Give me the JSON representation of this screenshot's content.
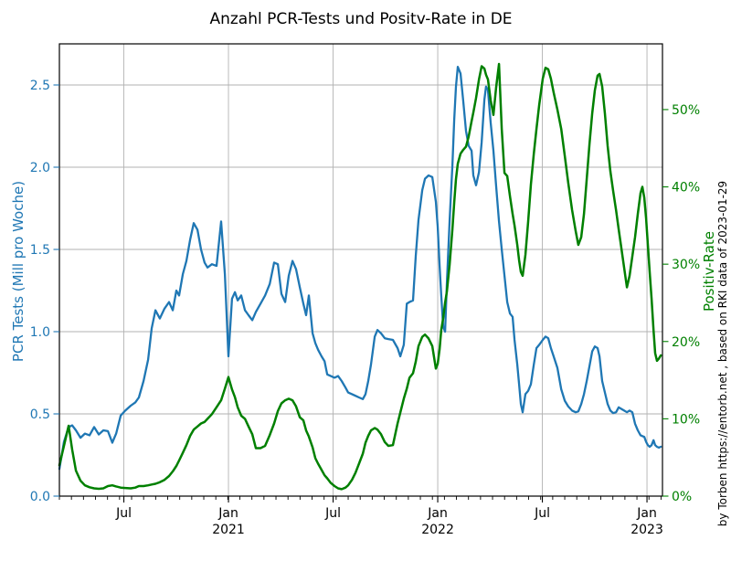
{
  "title": "Anzahl PCR-Tests und Positv-Rate in DE",
  "attribution": "by Torben https://entorb.net , based on RKI data of 2023-01-29",
  "colors": {
    "tests_line": "#1f77b4",
    "rate_line": "#008000",
    "grid": "#b2b2b2",
    "axis": "#000000",
    "background": "#ffffff"
  },
  "chart_data": {
    "type": "line",
    "title": "Anzahl PCR-Tests und Positv-Rate in DE",
    "grid": true,
    "legend": "none",
    "x_axis": {
      "range": [
        2020.192,
        2023.074
      ],
      "major_ticks": [
        {
          "t": 2020.5,
          "line1": "Jul",
          "line2": ""
        },
        {
          "t": 2021.0,
          "line1": "Jan",
          "line2": "2021"
        },
        {
          "t": 2021.5,
          "line1": "Jul",
          "line2": ""
        },
        {
          "t": 2022.0,
          "line1": "Jan",
          "line2": "2022"
        },
        {
          "t": 2022.5,
          "line1": "Jul",
          "line2": ""
        },
        {
          "t": 2023.0,
          "line1": "Jan",
          "line2": "2023"
        }
      ],
      "minor_tick_step_years": 0.0575
    },
    "y_left": {
      "label": "PCR Tests (Mill pro Woche)",
      "color": "#1f77b4",
      "range": [
        0,
        2.75
      ],
      "ticks": [
        {
          "v": 0.0,
          "label": "0.0"
        },
        {
          "v": 0.5,
          "label": "0.5"
        },
        {
          "v": 1.0,
          "label": "1.0"
        },
        {
          "v": 1.5,
          "label": "1.5"
        },
        {
          "v": 2.0,
          "label": "2.0"
        },
        {
          "v": 2.5,
          "label": "2.5"
        }
      ]
    },
    "y_right": {
      "label": "Positiv-Rate",
      "color": "#008000",
      "range": [
        0,
        58.5
      ],
      "ticks": [
        {
          "v": 0,
          "label": "0%"
        },
        {
          "v": 10,
          "label": "10%"
        },
        {
          "v": 20,
          "label": "20%"
        },
        {
          "v": 30,
          "label": "30%"
        },
        {
          "v": 40,
          "label": "40%"
        },
        {
          "v": 50,
          "label": "50%"
        }
      ]
    },
    "x": [
      2020.192,
      2020.214,
      2020.236,
      2020.253,
      2020.271,
      2020.293,
      2020.314,
      2020.336,
      2020.358,
      2020.38,
      2020.402,
      2020.424,
      2020.445,
      2020.463,
      2020.485,
      2020.507,
      2020.533,
      2020.555,
      2020.572,
      2020.594,
      2020.616,
      2020.633,
      2020.651,
      2020.672,
      2020.694,
      2020.716,
      2020.734,
      2020.751,
      2020.764,
      2020.782,
      2020.799,
      2020.817,
      2020.834,
      2020.852,
      2020.869,
      2020.886,
      2020.9,
      2020.921,
      2020.943,
      2020.965,
      2020.983,
      2021.0,
      2021.017,
      2021.031,
      2021.044,
      2021.061,
      2021.079,
      2021.096,
      2021.114,
      2021.131,
      2021.153,
      2021.175,
      2021.197,
      2021.218,
      2021.236,
      2021.253,
      2021.271,
      2021.288,
      2021.306,
      2021.323,
      2021.341,
      2021.358,
      2021.371,
      2021.384,
      2021.402,
      2021.415,
      2021.428,
      2021.445,
      2021.459,
      2021.472,
      2021.489,
      2021.507,
      2021.524,
      2021.541,
      2021.559,
      2021.572,
      2021.59,
      2021.607,
      2021.624,
      2021.642,
      2021.655,
      2021.668,
      2021.681,
      2021.699,
      2021.712,
      2021.729,
      2021.747,
      2021.764,
      2021.786,
      2021.808,
      2021.821,
      2021.838,
      2021.852,
      2021.865,
      2021.882,
      2021.895,
      2021.908,
      2021.926,
      2021.939,
      2021.956,
      2021.974,
      2021.991,
      2022.0,
      2022.009,
      2022.017,
      2022.026,
      2022.035,
      2022.044,
      2022.057,
      2022.07,
      2022.079,
      2022.087,
      2022.096,
      2022.109,
      2022.122,
      2022.135,
      2022.148,
      2022.162,
      2022.17,
      2022.183,
      2022.197,
      2022.21,
      2022.223,
      2022.231,
      2022.24,
      2022.253,
      2022.266,
      2022.279,
      2022.293,
      2022.306,
      2022.319,
      2022.332,
      2022.345,
      2022.358,
      2022.367,
      2022.38,
      2022.389,
      2022.397,
      2022.406,
      2022.419,
      2022.432,
      2022.445,
      2022.459,
      2022.472,
      2022.485,
      2022.502,
      2022.515,
      2022.528,
      2022.541,
      2022.554,
      2022.572,
      2022.59,
      2022.607,
      2022.624,
      2022.642,
      2022.659,
      2022.672,
      2022.686,
      2022.699,
      2022.712,
      2022.725,
      2022.738,
      2022.751,
      2022.764,
      2022.773,
      2022.786,
      2022.799,
      2022.812,
      2022.825,
      2022.838,
      2022.852,
      2022.865,
      2022.878,
      2022.891,
      2022.904,
      2022.917,
      2022.93,
      2022.943,
      2022.956,
      2022.969,
      2022.978,
      2022.987,
      2022.996,
      2023.004,
      2023.013,
      2023.022,
      2023.031,
      2023.039,
      2023.048,
      2023.057,
      2023.066
    ],
    "series": [
      {
        "name": "PCR Tests (Mill pro Woche)",
        "axis": "left",
        "color": "#1f77b4",
        "values": [
          0.165,
          0.33,
          0.42,
          0.43,
          0.4,
          0.355,
          0.38,
          0.37,
          0.42,
          0.375,
          0.4,
          0.395,
          0.325,
          0.38,
          0.49,
          0.52,
          0.55,
          0.57,
          0.6,
          0.7,
          0.83,
          1.02,
          1.13,
          1.08,
          1.14,
          1.18,
          1.13,
          1.25,
          1.22,
          1.35,
          1.43,
          1.56,
          1.66,
          1.62,
          1.5,
          1.42,
          1.39,
          1.41,
          1.4,
          1.67,
          1.35,
          0.85,
          1.2,
          1.24,
          1.19,
          1.22,
          1.13,
          1.1,
          1.07,
          1.12,
          1.17,
          1.22,
          1.29,
          1.42,
          1.41,
          1.23,
          1.18,
          1.34,
          1.43,
          1.38,
          1.27,
          1.17,
          1.1,
          1.22,
          0.99,
          0.93,
          0.89,
          0.85,
          0.82,
          0.74,
          0.73,
          0.72,
          0.73,
          0.7,
          0.66,
          0.63,
          0.62,
          0.61,
          0.6,
          0.59,
          0.62,
          0.7,
          0.8,
          0.97,
          1.01,
          0.99,
          0.96,
          0.955,
          0.95,
          0.9,
          0.85,
          0.92,
          1.17,
          1.18,
          1.19,
          1.46,
          1.68,
          1.86,
          1.93,
          1.95,
          1.94,
          1.79,
          1.64,
          1.4,
          1.22,
          1.03,
          1.0,
          1.3,
          1.68,
          2.01,
          2.29,
          2.49,
          2.61,
          2.57,
          2.4,
          2.22,
          2.13,
          2.1,
          1.95,
          1.89,
          1.97,
          2.15,
          2.41,
          2.49,
          2.47,
          2.27,
          2.1,
          1.89,
          1.67,
          1.5,
          1.34,
          1.18,
          1.11,
          1.09,
          0.95,
          0.8,
          0.68,
          0.56,
          0.51,
          0.62,
          0.64,
          0.68,
          0.8,
          0.9,
          0.92,
          0.95,
          0.97,
          0.96,
          0.9,
          0.85,
          0.78,
          0.65,
          0.58,
          0.545,
          0.52,
          0.51,
          0.515,
          0.56,
          0.62,
          0.7,
          0.79,
          0.88,
          0.91,
          0.9,
          0.85,
          0.7,
          0.63,
          0.56,
          0.52,
          0.505,
          0.51,
          0.54,
          0.53,
          0.52,
          0.51,
          0.52,
          0.51,
          0.44,
          0.4,
          0.37,
          0.365,
          0.36,
          0.33,
          0.31,
          0.3,
          0.31,
          0.34,
          0.31,
          0.3,
          0.295,
          0.3
        ]
      },
      {
        "name": "Positiv-Rate",
        "axis": "right",
        "color": "#008000",
        "values": [
          4.0,
          6.5,
          9.1,
          6.0,
          3.3,
          2.0,
          1.4,
          1.15,
          1.0,
          0.95,
          1.0,
          1.3,
          1.4,
          1.25,
          1.1,
          1.05,
          1.0,
          1.1,
          1.3,
          1.3,
          1.4,
          1.5,
          1.6,
          1.8,
          2.1,
          2.6,
          3.2,
          3.9,
          4.6,
          5.6,
          6.6,
          7.8,
          8.6,
          9.0,
          9.4,
          9.6,
          10.0,
          10.6,
          11.5,
          12.4,
          13.9,
          15.4,
          13.8,
          12.8,
          11.5,
          10.4,
          10.0,
          9.0,
          8.0,
          6.2,
          6.2,
          6.5,
          7.9,
          9.4,
          11.0,
          12.0,
          12.4,
          12.6,
          12.4,
          11.6,
          10.2,
          9.8,
          8.5,
          7.7,
          6.3,
          4.9,
          4.2,
          3.4,
          2.7,
          2.3,
          1.7,
          1.3,
          1.0,
          0.9,
          1.1,
          1.4,
          2.1,
          3.0,
          4.2,
          5.5,
          6.9,
          7.8,
          8.5,
          8.8,
          8.6,
          8.0,
          7.0,
          6.5,
          6.6,
          9.4,
          10.8,
          12.6,
          13.9,
          15.3,
          15.9,
          17.4,
          19.4,
          20.6,
          20.9,
          20.4,
          19.4,
          16.5,
          17.1,
          19.0,
          21.5,
          23.0,
          25.0,
          26.5,
          30.0,
          34.5,
          38.0,
          41.0,
          43.0,
          44.3,
          44.8,
          45.2,
          46.5,
          48.5,
          49.6,
          51.5,
          53.9,
          55.6,
          55.3,
          54.5,
          53.9,
          51.2,
          49.3,
          52.8,
          55.9,
          47.5,
          41.8,
          41.4,
          38.8,
          36.5,
          35.0,
          32.5,
          30.5,
          29.0,
          28.5,
          31.2,
          35.5,
          40.3,
          44.3,
          47.5,
          50.6,
          54.0,
          55.4,
          55.2,
          54.0,
          52.2,
          50.0,
          47.5,
          44.0,
          40.5,
          37.0,
          34.3,
          32.5,
          33.5,
          36.5,
          41.0,
          45.5,
          49.5,
          52.5,
          54.4,
          54.6,
          53.0,
          49.5,
          45.3,
          42.0,
          39.5,
          37.0,
          34.5,
          32.0,
          29.5,
          27.0,
          28.5,
          31.0,
          33.5,
          36.5,
          39.2,
          40.0,
          38.6,
          35.9,
          32.5,
          29.0,
          25.5,
          21.5,
          18.5,
          17.5,
          17.8,
          18.2
        ]
      }
    ]
  }
}
